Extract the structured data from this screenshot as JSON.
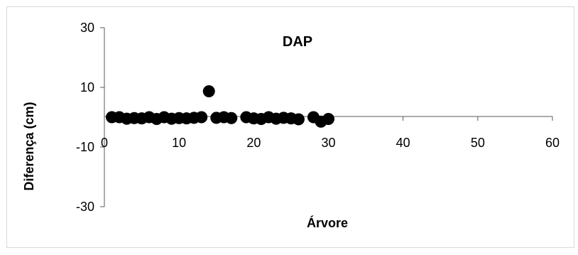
{
  "chart_data": {
    "type": "scatter",
    "title": "DAP",
    "xlabel": "Árvore",
    "ylabel": "Diferença (cm)",
    "xlim": [
      0,
      60
    ],
    "ylim": [
      -30,
      30
    ],
    "x_ticks": [
      0,
      10,
      20,
      30,
      40,
      50,
      60
    ],
    "y_ticks": [
      30,
      10,
      -10,
      -30
    ],
    "grid": false,
    "legend": "none",
    "marker_color": "#000000",
    "series": [
      {
        "points": [
          [
            1,
            0.0
          ],
          [
            2,
            0.0
          ],
          [
            3,
            -0.5
          ],
          [
            4,
            -0.3
          ],
          [
            5,
            -0.4
          ],
          [
            6,
            0.0
          ],
          [
            7,
            -0.6
          ],
          [
            8,
            0.0
          ],
          [
            9,
            -0.5
          ],
          [
            10,
            -0.3
          ],
          [
            11,
            -0.4
          ],
          [
            12,
            -0.2
          ],
          [
            13,
            0.0
          ],
          [
            14,
            8.7
          ],
          [
            15,
            -0.2
          ],
          [
            16,
            0.0
          ],
          [
            17,
            -0.3
          ],
          [
            19,
            0.0
          ],
          [
            20,
            -0.4
          ],
          [
            21,
            -0.6
          ],
          [
            22,
            0.0
          ],
          [
            23,
            -0.5
          ],
          [
            24,
            -0.2
          ],
          [
            25,
            -0.4
          ],
          [
            26,
            -0.7
          ],
          [
            28,
            0.0
          ],
          [
            29,
            -1.5
          ],
          [
            30,
            -0.6
          ]
        ]
      }
    ]
  }
}
